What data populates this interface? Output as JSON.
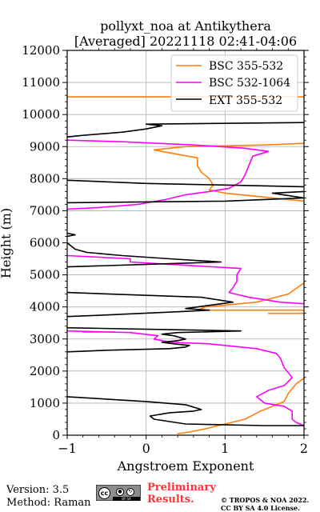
{
  "chart_data": {
    "type": "line",
    "title_line1": "pollyxt_noa at Antikythera",
    "title_line2": "[Averaged] 20221118 02:41-04:06",
    "xlabel": "Angstroem Exponent",
    "ylabel": "Height (m)",
    "xlim": [
      -1,
      2
    ],
    "ylim": [
      0,
      12000
    ],
    "xticks": [
      -1,
      0,
      1,
      2
    ],
    "xtick_labels": [
      "−1",
      "0",
      "1",
      "2"
    ],
    "yticks": [
      0,
      1000,
      2000,
      3000,
      4000,
      5000,
      6000,
      7000,
      8000,
      9000,
      10000,
      11000,
      12000
    ],
    "ytick_labels": [
      "0",
      "1000",
      "2000",
      "3000",
      "4000",
      "5000",
      "6000",
      "7000",
      "8000",
      "9000",
      "10000",
      "11000",
      "12000"
    ],
    "grid": true,
    "legend_position": "top-right",
    "series": [
      {
        "name": "BSC 355-532",
        "color": "#ff7f0e",
        "points": [
          [
            0.4,
            50
          ],
          [
            0.55,
            100
          ],
          [
            0.75,
            200
          ],
          [
            1.0,
            350
          ],
          [
            1.25,
            500
          ],
          [
            1.45,
            750
          ],
          [
            1.6,
            900
          ],
          [
            1.75,
            1050
          ],
          [
            1.8,
            1300
          ],
          [
            1.9,
            1600
          ],
          [
            2.0,
            1780
          ],
          null,
          [
            2.0,
            3800
          ],
          [
            1.55,
            3800
          ],
          null,
          [
            2.0,
            3900
          ],
          [
            0.65,
            3900
          ],
          [
            0.75,
            4000
          ],
          [
            1.4,
            4150
          ],
          [
            1.8,
            4400
          ],
          [
            2.0,
            4750
          ],
          null,
          [
            2.0,
            7300
          ],
          [
            1.6,
            7400
          ],
          [
            1.0,
            7550
          ],
          [
            0.8,
            7650
          ],
          [
            0.85,
            7800
          ],
          [
            0.8,
            8000
          ],
          [
            0.7,
            8200
          ],
          [
            0.65,
            8400
          ],
          [
            0.65,
            8650
          ],
          [
            0.2,
            8850
          ],
          [
            0.1,
            8900
          ],
          [
            0.5,
            9000
          ],
          [
            1.5,
            9050
          ],
          [
            2.0,
            9100
          ],
          null,
          [
            -1,
            10550
          ],
          [
            2.0,
            10550
          ]
        ]
      },
      {
        "name": "BSC 532-1064",
        "color": "#ff00ff",
        "points": [
          [
            2.0,
            300
          ],
          [
            1.9,
            400
          ],
          [
            1.85,
            500
          ],
          [
            1.85,
            750
          ],
          [
            1.75,
            900
          ],
          [
            1.5,
            1000
          ],
          [
            1.4,
            1200
          ],
          [
            1.55,
            1400
          ],
          [
            1.75,
            1550
          ],
          [
            1.85,
            1800
          ],
          [
            1.75,
            2100
          ],
          [
            1.7,
            2400
          ],
          [
            1.65,
            2550
          ],
          [
            1.4,
            2700
          ],
          [
            0.8,
            2850
          ],
          [
            0.3,
            2900
          ],
          [
            0.1,
            3000
          ],
          [
            0.15,
            3100
          ],
          [
            -0.2,
            3200
          ],
          [
            -1.0,
            3250
          ],
          null,
          [
            -0.8,
            3220
          ],
          [
            -0.4,
            3220
          ],
          null,
          [
            2.0,
            4100
          ],
          [
            1.7,
            4150
          ],
          [
            1.3,
            4300
          ],
          [
            1.05,
            4450
          ],
          [
            1.1,
            4600
          ],
          [
            1.15,
            4800
          ],
          [
            1.15,
            5000
          ],
          [
            1.2,
            5200
          ],
          [
            0.5,
            5300
          ],
          [
            -0.2,
            5400
          ],
          [
            -0.2,
            5500
          ],
          [
            -1.0,
            5600
          ],
          null,
          [
            -1.0,
            7050
          ],
          [
            -0.6,
            7100
          ],
          [
            -0.1,
            7200
          ],
          [
            0.25,
            7350
          ],
          [
            0.5,
            7500
          ],
          [
            0.8,
            7600
          ],
          [
            1.05,
            7700
          ],
          [
            1.2,
            7900
          ],
          [
            1.25,
            8100
          ],
          [
            1.3,
            8400
          ],
          [
            1.35,
            8700
          ],
          [
            1.55,
            8850
          ],
          [
            1.25,
            8950
          ],
          [
            0.6,
            9050
          ],
          [
            -0.3,
            9150
          ],
          [
            -1.0,
            9200
          ]
        ]
      },
      {
        "name": "EXT 355-532",
        "color": "#000000",
        "points": [
          [
            2.0,
            300
          ],
          [
            1.5,
            300
          ],
          [
            0.5,
            350
          ],
          [
            0.1,
            500
          ],
          [
            0.05,
            600
          ],
          [
            0.3,
            700
          ],
          [
            0.6,
            750
          ],
          [
            0.7,
            800
          ],
          [
            0.5,
            950
          ],
          [
            0.0,
            1050
          ],
          [
            -1.0,
            1200
          ],
          null,
          [
            -1.0,
            2600
          ],
          [
            -0.5,
            2650
          ],
          [
            0.3,
            2700
          ],
          [
            0.5,
            2750
          ],
          [
            0.55,
            2800
          ],
          [
            0.35,
            2850
          ],
          [
            0.2,
            2900
          ],
          [
            0.4,
            2950
          ],
          [
            0.5,
            3000
          ],
          [
            0.35,
            3100
          ],
          [
            0.2,
            3150
          ],
          [
            0.4,
            3200
          ],
          [
            1.2,
            3250
          ],
          [
            0.1,
            3300
          ],
          [
            -1.0,
            3350
          ],
          null,
          [
            -1.0,
            3700
          ],
          [
            -0.5,
            3750
          ],
          [
            0.4,
            3850
          ],
          [
            0.8,
            3900
          ],
          [
            0.5,
            3950
          ],
          [
            1.1,
            4150
          ],
          [
            0.7,
            4300
          ],
          [
            -1.0,
            4450
          ],
          null,
          [
            -1.0,
            5250
          ],
          [
            0.3,
            5350
          ],
          [
            0.95,
            5400
          ],
          [
            0.3,
            5500
          ],
          [
            -0.3,
            5600
          ],
          [
            -0.75,
            5700
          ],
          [
            -0.9,
            5800
          ],
          [
            -0.95,
            5900
          ],
          [
            -1.0,
            6000
          ],
          null,
          [
            -1.0,
            6200
          ],
          [
            -0.9,
            6250
          ],
          [
            -1.0,
            6300
          ],
          null,
          [
            -1.0,
            7250
          ],
          [
            1.0,
            7300
          ],
          [
            2.0,
            7400
          ],
          [
            1.6,
            7550
          ],
          [
            2.0,
            7600
          ],
          null,
          [
            2.0,
            7750
          ],
          [
            1.0,
            7800
          ],
          [
            0.0,
            7850
          ],
          [
            -1.0,
            7950
          ],
          null,
          [
            -1.0,
            9300
          ],
          [
            -0.8,
            9350
          ],
          [
            -0.3,
            9450
          ],
          [
            0.0,
            9550
          ],
          [
            0.2,
            9650
          ],
          [
            0.0,
            9700
          ],
          [
            2.0,
            9750
          ]
        ]
      }
    ]
  },
  "footer": {
    "version": "Version: 3.5",
    "method": "Method: Raman",
    "cc_text": "cc",
    "cc_by_text": "BY",
    "cc_sa_text": "SA",
    "prelim_line1": "Preliminary",
    "prelim_line2": "Results.",
    "copyright_line1": "© TROPOS & NOA 2022.",
    "copyright_line2": "CC BY SA 4.0 License."
  }
}
